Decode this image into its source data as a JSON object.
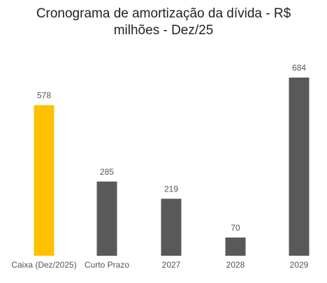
{
  "chart_data": {
    "type": "bar",
    "title_lines": [
      "Cronograma de amortização da dívida - R$",
      "milhões - Dez/25"
    ],
    "categories": [
      "Caixa (Dez/2025)",
      "Curto Prazo",
      "2027",
      "2028",
      "2029"
    ],
    "values": [
      578,
      285,
      219,
      70,
      684
    ],
    "value_labels": [
      "578",
      "285",
      "219",
      "70",
      "684"
    ],
    "xlabel": "",
    "ylabel": "",
    "ylim": [
      0,
      684
    ],
    "grid": false,
    "legend": "none",
    "colors": {
      "highlight": "#FFC000",
      "default": "#595959"
    },
    "highlight_index": 0
  }
}
